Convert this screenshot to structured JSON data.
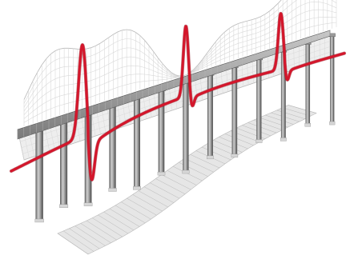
{
  "illustration": {
    "subject": "3d-wave-structure-illustration",
    "colors": {
      "background": "#ffffff",
      "accent_curve": "#d4162b",
      "accent_curve_dark": "#8f0c19",
      "mesh_stroke": "#b8b8b8",
      "mesh_stroke_light": "#d9d9d9",
      "panel_fill": "#eeeeee",
      "pillar_light": "#d6d6d6",
      "pillar_mid": "#9a9a9a",
      "pillar_dark": "#5a5a5a",
      "shadow_fill": "#e6e6e6"
    }
  }
}
